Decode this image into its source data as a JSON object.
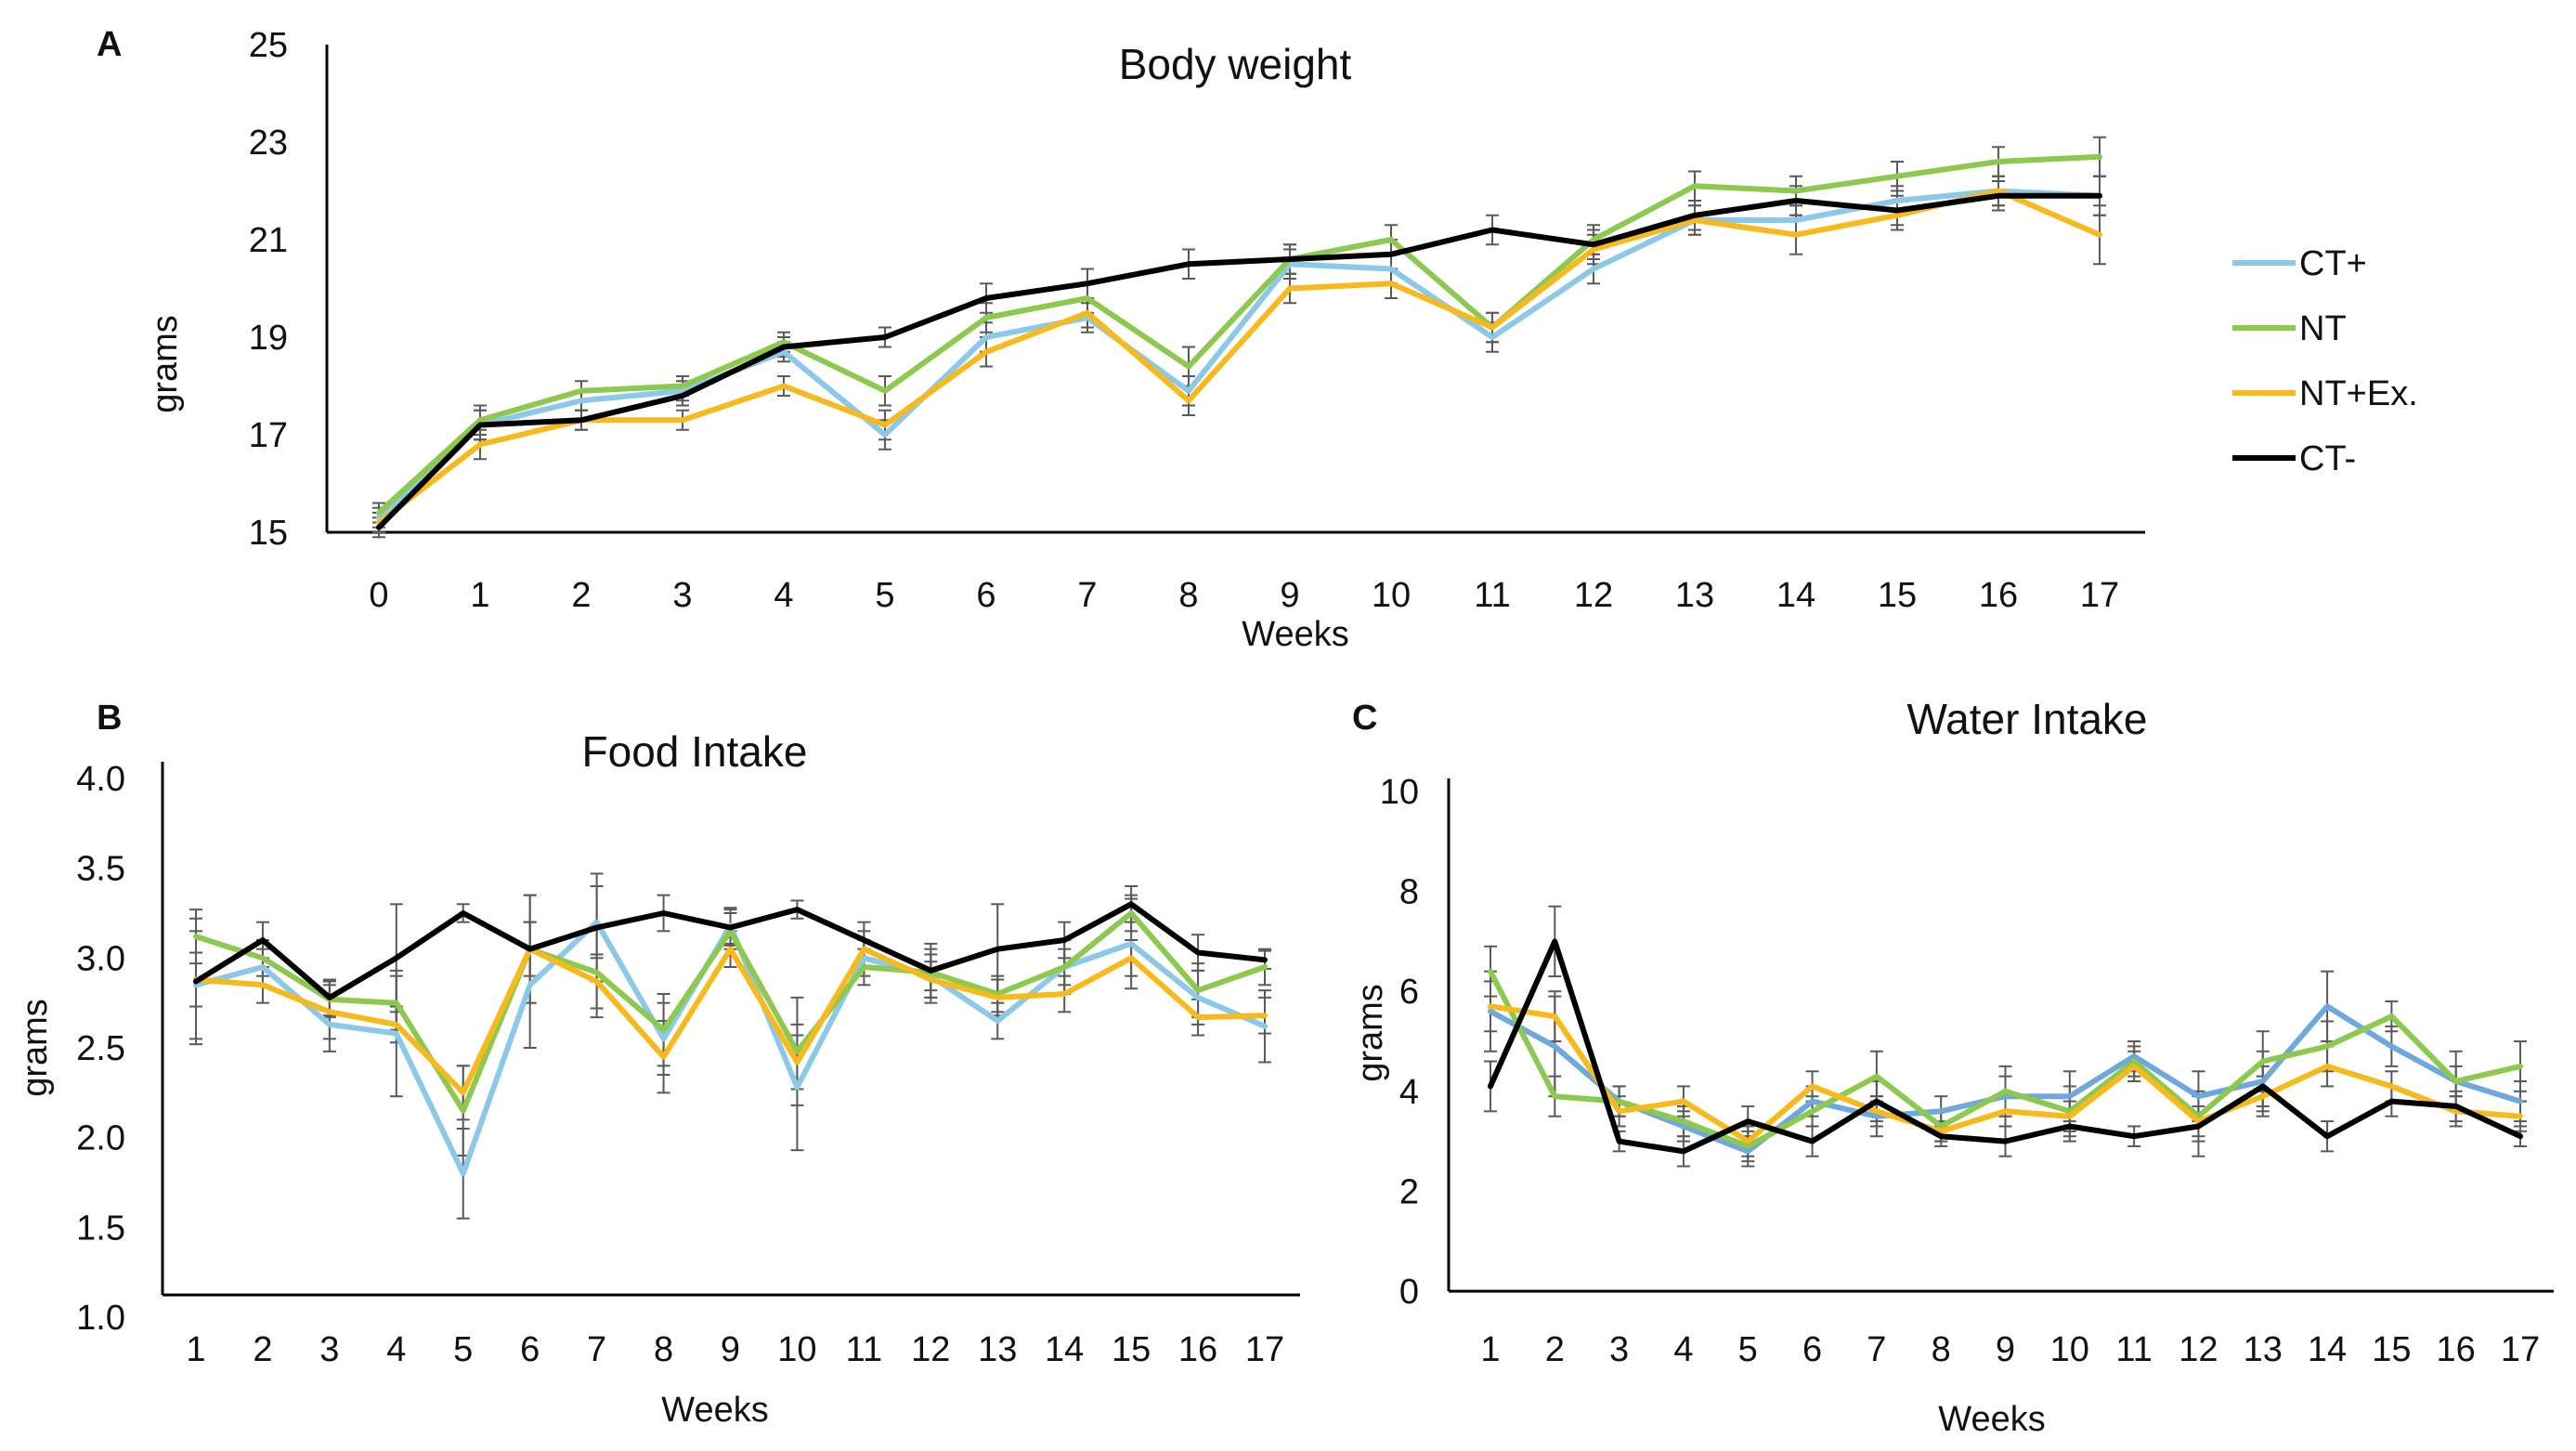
{
  "colors": {
    "CT+": "#8cc8e8",
    "NT": "#8dc94f",
    "NT+Ex.": "#f7b91c",
    "CT-": "#000000",
    "error_bar": "#5a5a5a"
  },
  "legend": {
    "items": [
      {
        "label": "CT+",
        "color": "#8cc8e8"
      },
      {
        "label": "NT",
        "color": "#8dc94f"
      },
      {
        "label": "NT+Ex.",
        "color": "#f7b91c"
      },
      {
        "label": "CT-",
        "color": "#000000"
      }
    ]
  },
  "chart_data": [
    {
      "panel": "A",
      "type": "line",
      "title": "Body weight",
      "xlabel": "Weeks",
      "ylabel": "grams",
      "x": [
        0,
        1,
        2,
        3,
        4,
        5,
        6,
        7,
        8,
        9,
        10,
        11,
        12,
        13,
        14,
        15,
        16,
        17
      ],
      "x_tick_labels": [
        "0",
        "1",
        "2",
        "3",
        "4",
        "5",
        "6",
        "7",
        "8",
        "9",
        "10",
        "11",
        "12",
        "13",
        "14",
        "15",
        "16",
        "17"
      ],
      "y_ticks": [
        15,
        17,
        19,
        21,
        23,
        25
      ],
      "y_tick_labels": [
        "15",
        "17",
        "19",
        "21",
        "23",
        "25"
      ],
      "ylim": [
        15,
        25
      ],
      "legend_position": "right",
      "series": [
        {
          "name": "CT+",
          "values": [
            15.3,
            17.2,
            17.7,
            17.9,
            18.7,
            17.0,
            19.0,
            19.4,
            17.9,
            20.5,
            20.4,
            19.0,
            20.4,
            21.4,
            21.4,
            21.8,
            22.0,
            21.9
          ],
          "errors": [
            0.2,
            0.3,
            0.2,
            0.2,
            0.2,
            0.3,
            0.3,
            0.3,
            0.3,
            0.3,
            0.3,
            0.3,
            0.3,
            0.3,
            0.3,
            0.3,
            0.3,
            0.4
          ]
        },
        {
          "name": "NT",
          "values": [
            15.4,
            17.3,
            17.9,
            18.0,
            18.9,
            17.9,
            19.4,
            19.8,
            18.4,
            20.6,
            21.0,
            19.2,
            21.0,
            22.1,
            22.0,
            22.3,
            22.6,
            22.7
          ],
          "errors": [
            0.2,
            0.3,
            0.2,
            0.2,
            0.2,
            0.3,
            0.3,
            0.3,
            0.4,
            0.3,
            0.3,
            0.3,
            0.3,
            0.3,
            0.3,
            0.3,
            0.3,
            0.4
          ]
        },
        {
          "name": "NT+Ex.",
          "values": [
            15.2,
            16.8,
            17.3,
            17.3,
            18.0,
            17.2,
            18.7,
            19.5,
            17.7,
            20.0,
            20.1,
            19.2,
            20.8,
            21.4,
            21.1,
            21.5,
            22.0,
            21.1
          ],
          "errors": [
            0.2,
            0.3,
            0.2,
            0.2,
            0.2,
            0.3,
            0.3,
            0.3,
            0.3,
            0.3,
            0.3,
            0.3,
            0.3,
            0.3,
            0.4,
            0.3,
            0.3,
            0.6
          ]
        },
        {
          "name": "CT-",
          "values": [
            15.1,
            17.2,
            17.3,
            17.8,
            18.8,
            19.0,
            19.8,
            20.1,
            20.5,
            20.6,
            20.7,
            21.2,
            20.9,
            21.5,
            21.8,
            21.6,
            21.9,
            21.9
          ],
          "errors": [
            0.2,
            0.3,
            0.2,
            0.2,
            0.2,
            0.2,
            0.3,
            0.3,
            0.3,
            0.3,
            0.3,
            0.3,
            0.3,
            0.3,
            0.3,
            0.3,
            0.3,
            0.4
          ]
        }
      ]
    },
    {
      "panel": "B",
      "type": "line",
      "title": "Food Intake",
      "xlabel": "Weeks",
      "ylabel": "grams",
      "x": [
        1,
        2,
        3,
        4,
        5,
        6,
        7,
        8,
        9,
        10,
        11,
        12,
        13,
        14,
        15,
        16,
        17
      ],
      "x_tick_labels": [
        "1",
        "2",
        "3",
        "4",
        "5",
        "6",
        "7",
        "8",
        "9",
        "10",
        "11",
        "12",
        "13",
        "14",
        "15",
        "16",
        "17"
      ],
      "y_ticks": [
        1.0,
        1.5,
        2.0,
        2.5,
        3.0,
        3.5,
        4.0
      ],
      "y_tick_labels": [
        "1.0",
        "1.5",
        "2.0",
        "2.5",
        "3.0",
        "3.5",
        "4.0"
      ],
      "ylim": [
        1.0,
        4.0
      ],
      "series": [
        {
          "name": "CT+",
          "values": [
            2.85,
            2.95,
            2.63,
            2.58,
            1.8,
            2.85,
            3.2,
            2.55,
            3.18,
            2.28,
            3.0,
            2.9,
            2.65,
            2.95,
            3.08,
            2.78,
            2.62
          ],
          "errors": [
            0.3,
            0.1,
            0.15,
            0.35,
            0.25,
            0.35,
            0.2,
            0.2,
            0.1,
            0.35,
            0.1,
            0.15,
            0.1,
            0.15,
            0.25,
            0.15,
            0.2
          ]
        },
        {
          "name": "NT",
          "values": [
            3.12,
            3.0,
            2.77,
            2.75,
            2.15,
            3.05,
            2.92,
            2.6,
            3.15,
            2.48,
            2.95,
            2.92,
            2.8,
            2.95,
            3.25,
            2.82,
            2.95
          ],
          "errors": [
            0.15,
            0.1,
            0.1,
            0.15,
            0.25,
            0.3,
            0.25,
            0.2,
            0.1,
            0.3,
            0.1,
            0.1,
            0.1,
            0.1,
            0.1,
            0.15,
            0.1
          ]
        },
        {
          "name": "NT+Ex.",
          "values": [
            2.88,
            2.85,
            2.7,
            2.63,
            2.25,
            3.05,
            2.87,
            2.45,
            3.05,
            2.42,
            3.05,
            2.88,
            2.78,
            2.8,
            3.0,
            2.67,
            2.68
          ],
          "errors": [
            0.15,
            0.1,
            0.15,
            0.1,
            0.15,
            0.15,
            0.15,
            0.2,
            0.1,
            0.15,
            0.1,
            0.1,
            0.1,
            0.1,
            0.1,
            0.1,
            0.1
          ]
        },
        {
          "name": "CT-",
          "values": [
            2.87,
            3.1,
            2.78,
            3.0,
            3.25,
            3.05,
            3.17,
            3.25,
            3.17,
            3.27,
            3.1,
            2.93,
            3.05,
            3.1,
            3.3,
            3.03,
            2.99
          ],
          "errors": [
            0.35,
            0.1,
            0.1,
            0.3,
            0.05,
            0.3,
            0.3,
            0.1,
            0.1,
            0.05,
            0.1,
            0.15,
            0.25,
            0.1,
            0.1,
            0.1,
            0.05
          ]
        }
      ]
    },
    {
      "panel": "C",
      "type": "line",
      "title": "Water Intake",
      "xlabel": "Weeks",
      "ylabel": "grams",
      "x": [
        1,
        2,
        3,
        4,
        5,
        6,
        7,
        8,
        9,
        10,
        11,
        12,
        13,
        14,
        15,
        16,
        17
      ],
      "x_tick_labels": [
        "1",
        "2",
        "3",
        "4",
        "5",
        "6",
        "7",
        "8",
        "9",
        "10",
        "11",
        "12",
        "13",
        "14",
        "15",
        "16",
        "17"
      ],
      "y_ticks": [
        0,
        2,
        4,
        6,
        8,
        10
      ],
      "y_tick_labels": [
        "0",
        "2",
        "4",
        "6",
        "8",
        "10"
      ],
      "ylim": [
        0,
        10
      ],
      "series": [
        {
          "name": "CT+",
          "color": "#6fa8dc",
          "values": [
            5.6,
            4.9,
            3.8,
            3.3,
            2.8,
            3.8,
            3.5,
            3.6,
            3.9,
            3.9,
            4.7,
            3.9,
            4.2,
            5.7,
            4.9,
            4.2,
            3.8
          ],
          "errors": [
            0.8,
            1.0,
            0.3,
            0.3,
            0.3,
            0.3,
            0.4,
            0.3,
            0.4,
            0.5,
            0.3,
            0.5,
            0.6,
            0.7,
            0.4,
            0.3,
            0.4
          ]
        },
        {
          "name": "NT",
          "values": [
            6.4,
            3.9,
            3.8,
            3.4,
            2.9,
            3.6,
            4.3,
            3.3,
            4.0,
            3.6,
            4.6,
            3.5,
            4.6,
            4.9,
            5.5,
            4.2,
            4.5
          ],
          "errors": [
            0.5,
            0.4,
            0.3,
            0.3,
            0.3,
            0.3,
            0.5,
            0.3,
            0.5,
            0.5,
            0.3,
            0.5,
            0.6,
            0.5,
            0.3,
            0.6,
            0.5
          ]
        },
        {
          "name": "NT+Ex.",
          "values": [
            5.7,
            5.5,
            3.6,
            3.8,
            3.0,
            4.1,
            3.6,
            3.2,
            3.6,
            3.5,
            4.5,
            3.4,
            3.9,
            4.5,
            4.1,
            3.6,
            3.5
          ],
          "errors": [
            0.5,
            0.5,
            0.3,
            0.3,
            0.3,
            0.3,
            0.3,
            0.2,
            0.3,
            0.3,
            0.3,
            0.3,
            0.4,
            0.4,
            0.3,
            0.3,
            0.3
          ]
        },
        {
          "name": "CT-",
          "values": [
            4.1,
            7.0,
            3.0,
            2.8,
            3.4,
            3.0,
            3.8,
            3.1,
            3.0,
            3.3,
            3.1,
            3.3,
            4.1,
            3.1,
            3.8,
            3.7,
            3.1
          ],
          "errors": [
            0.5,
            0.7,
            0.2,
            0.3,
            0.3,
            0.3,
            0.4,
            0.2,
            0.3,
            0.3,
            0.2,
            0.6,
            0.4,
            0.3,
            0.3,
            0.3,
            0.2
          ]
        }
      ]
    }
  ]
}
